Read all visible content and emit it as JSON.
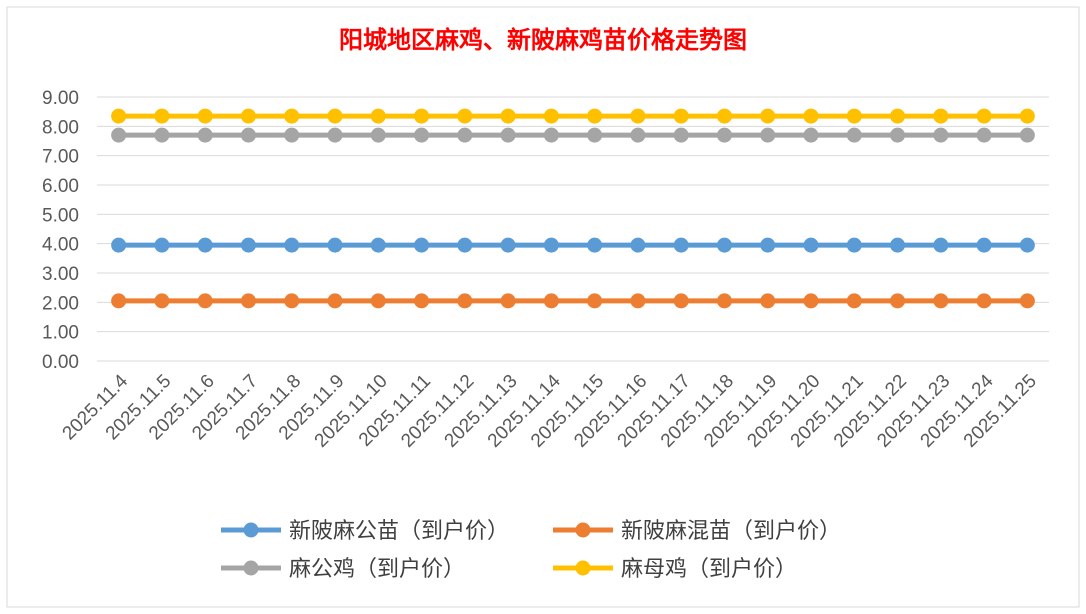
{
  "chart_data": {
    "type": "line",
    "title": "阳城地区麻鸡、新陂麻鸡苗价格走势图",
    "title_color": "#ff0000",
    "categories": [
      "2025.11.4",
      "2025.11.5",
      "2025.11.6",
      "2025.11.7",
      "2025.11.8",
      "2025.11.9",
      "2025.11.10",
      "2025.11.11",
      "2025.11.12",
      "2025.11.13",
      "2025.11.14",
      "2025.11.15",
      "2025.11.16",
      "2025.11.17",
      "2025.11.18",
      "2025.11.19",
      "2025.11.20",
      "2025.11.21",
      "2025.11.22",
      "2025.11.23",
      "2025.11.24",
      "2025.11.25"
    ],
    "ylim": [
      0,
      9
    ],
    "yticks": [
      "0.00",
      "1.00",
      "2.00",
      "3.00",
      "4.00",
      "5.00",
      "6.00",
      "7.00",
      "8.00",
      "9.00"
    ],
    "grid": true,
    "legend_position": "bottom",
    "series": [
      {
        "name": "新陂麻公苗（到户价）",
        "color": "#5b9bd5",
        "values": [
          3.95,
          3.95,
          3.95,
          3.95,
          3.95,
          3.95,
          3.95,
          3.95,
          3.95,
          3.95,
          3.95,
          3.95,
          3.95,
          3.95,
          3.95,
          3.95,
          3.95,
          3.95,
          3.95,
          3.95,
          3.95,
          3.95
        ]
      },
      {
        "name": "新陂麻混苗（到户价）",
        "color": "#ed7d31",
        "values": [
          2.05,
          2.05,
          2.05,
          2.05,
          2.05,
          2.05,
          2.05,
          2.05,
          2.05,
          2.05,
          2.05,
          2.05,
          2.05,
          2.05,
          2.05,
          2.05,
          2.05,
          2.05,
          2.05,
          2.05,
          2.05,
          2.05
        ]
      },
      {
        "name": "麻公鸡（到户价）",
        "color": "#a5a5a5",
        "values": [
          7.7,
          7.7,
          7.7,
          7.7,
          7.7,
          7.7,
          7.7,
          7.7,
          7.7,
          7.7,
          7.7,
          7.7,
          7.7,
          7.7,
          7.7,
          7.7,
          7.7,
          7.7,
          7.7,
          7.7,
          7.7,
          7.7
        ]
      },
      {
        "name": "麻母鸡（到户价）",
        "color": "#ffc000",
        "values": [
          8.35,
          8.35,
          8.35,
          8.35,
          8.35,
          8.35,
          8.35,
          8.35,
          8.35,
          8.35,
          8.35,
          8.35,
          8.35,
          8.35,
          8.35,
          8.35,
          8.35,
          8.35,
          8.35,
          8.35,
          8.35,
          8.35
        ]
      }
    ]
  }
}
